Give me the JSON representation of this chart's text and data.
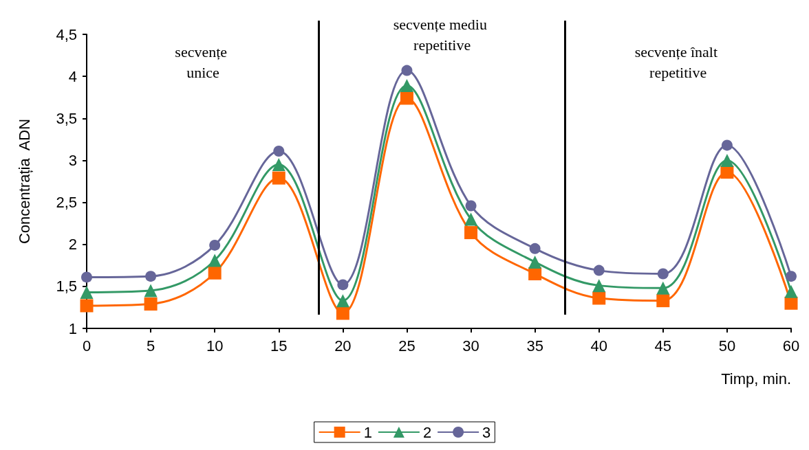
{
  "chart_data": {
    "type": "line",
    "xlabel": "Timp, min.",
    "ylabel": "Concentrația  ADN",
    "categories": [
      "0",
      "5",
      "10",
      "15",
      "20",
      "25",
      "30",
      "35",
      "40",
      "45",
      "50",
      "60"
    ],
    "series": [
      {
        "name": "1",
        "color": "#ff6600",
        "marker": "square",
        "values": [
          1.27,
          1.29,
          1.66,
          2.79,
          1.18,
          3.74,
          2.14,
          1.65,
          1.36,
          1.33,
          2.86,
          1.3
        ]
      },
      {
        "name": "2",
        "color": "#339966",
        "marker": "triangle",
        "values": [
          1.43,
          1.45,
          1.81,
          2.95,
          1.33,
          3.89,
          2.3,
          1.79,
          1.51,
          1.48,
          3.0,
          1.44
        ]
      },
      {
        "name": "3",
        "color": "#666699",
        "marker": "circle",
        "values": [
          1.61,
          1.62,
          1.99,
          3.11,
          1.52,
          4.07,
          2.46,
          1.95,
          1.69,
          1.65,
          3.18,
          1.62
        ]
      }
    ],
    "ylim": [
      1,
      4.5
    ],
    "yticks": [
      1,
      {
        "value": 1.5,
        "label": "1,5"
      },
      2,
      {
        "value": 2.5,
        "label": "2,5"
      },
      3,
      {
        "value": 3.5,
        "label": "3,5"
      },
      4,
      {
        "value": 4.5,
        "label": "4,5"
      }
    ],
    "annotations": [
      "secvențe unice",
      "secvențe mediu repetitive",
      "secvențe înalt repetitive"
    ],
    "grid": false,
    "legend": "bottom",
    "line_style": "solid"
  }
}
